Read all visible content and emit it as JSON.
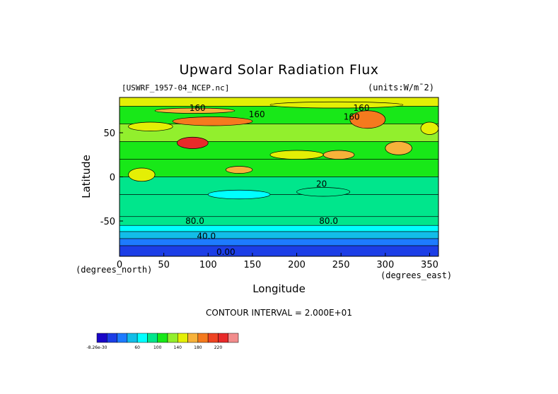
{
  "chart_data": {
    "type": "heatmap",
    "title": "Upward Solar Radiation Flux",
    "file": "[USWRF_1957-04_NCEP.nc]",
    "units": "(units:W/m¯2)",
    "xlabel": "Longitude",
    "ylabel": "Latitude",
    "x_unit": "(degrees_north)",
    "x_unit_east": "(degrees_east)",
    "xlim": [
      0,
      360
    ],
    "ylim": [
      -90,
      90
    ],
    "x_ticks": [
      0,
      50,
      100,
      150,
      200,
      250,
      300,
      350
    ],
    "y_ticks": [
      50,
      0,
      -50
    ],
    "contour_interval": "CONTOUR INTERVAL = 2.000E+01",
    "colorbar_labels": [
      "-8.26e-30",
      "60",
      "100",
      "140",
      "180",
      "220"
    ],
    "colorbar_colors": [
      "#1a06c7",
      "#1c3ee6",
      "#1d7bff",
      "#12bde8",
      "#00ffff",
      "#00e68c",
      "#18e818",
      "#92ef2d",
      "#e4ef05",
      "#f7b23a",
      "#f57a1e",
      "#ef4423",
      "#e82a2a",
      "#f28c8c"
    ],
    "contour_labels": [
      {
        "text": "160",
        "lon": 88,
        "lat": 78
      },
      {
        "text": "160",
        "lon": 155,
        "lat": 71
      },
      {
        "text": "160",
        "lon": 273,
        "lat": 78
      },
      {
        "text": "160",
        "lon": 262,
        "lat": 68
      },
      {
        "text": "20",
        "lon": 228,
        "lat": -8
      },
      {
        "text": "80.0",
        "lon": 85,
        "lat": -50
      },
      {
        "text": "80.0",
        "lon": 236,
        "lat": -50
      },
      {
        "text": "40.0",
        "lon": 98,
        "lat": -67
      },
      {
        "text": "0.00",
        "lon": 120,
        "lat": -85
      }
    ],
    "lat_bands": [
      {
        "from": 90,
        "to": 80,
        "value": 150
      },
      {
        "from": 80,
        "to": 60,
        "value": 110
      },
      {
        "from": 60,
        "to": 40,
        "value": 120
      },
      {
        "from": 40,
        "to": 20,
        "value": 110
      },
      {
        "from": 20,
        "to": 0,
        "value": 105
      },
      {
        "from": 0,
        "to": -20,
        "value": 95
      },
      {
        "from": -20,
        "to": -45,
        "value": 90
      },
      {
        "from": -45,
        "to": -55,
        "value": 80
      },
      {
        "from": -55,
        "to": -62,
        "value": 60
      },
      {
        "from": -62,
        "to": -70,
        "value": 40
      },
      {
        "from": -70,
        "to": -78,
        "value": 20
      },
      {
        "from": -78,
        "to": -90,
        "value": 5
      }
    ],
    "highlights": [
      {
        "lon": [
          60,
          150
        ],
        "lat": [
          68,
          58
        ],
        "value": 180
      },
      {
        "lon": [
          260,
          300
        ],
        "lat": [
          75,
          55
        ],
        "value": 180
      },
      {
        "lon": [
          65,
          100
        ],
        "lat": [
          45,
          32
        ],
        "value": 220
      },
      {
        "lon": [
          40,
          130
        ],
        "lat": [
          78,
          72
        ],
        "value": 160
      },
      {
        "lon": [
          170,
          320
        ],
        "lat": [
          85,
          78
        ],
        "value": 150
      },
      {
        "lon": [
          120,
          150
        ],
        "lat": [
          12,
          4
        ],
        "value": 170
      },
      {
        "lon": [
          230,
          265
        ],
        "lat": [
          30,
          20
        ],
        "value": 170
      },
      {
        "lon": [
          300,
          330
        ],
        "lat": [
          40,
          25
        ],
        "value": 160
      },
      {
        "lon": [
          10,
          40
        ],
        "lat": [
          10,
          -5
        ],
        "value": 150
      },
      {
        "lon": [
          340,
          360
        ],
        "lat": [
          62,
          48
        ],
        "value": 150
      },
      {
        "lon": [
          100,
          170
        ],
        "lat": [
          -15,
          -25
        ],
        "value": 70
      },
      {
        "lon": [
          200,
          260
        ],
        "lat": [
          -12,
          -22
        ],
        "value": 80
      },
      {
        "lon": [
          170,
          230
        ],
        "lat": [
          30,
          20
        ],
        "value": 140
      },
      {
        "lon": [
          10,
          60
        ],
        "lat": [
          62,
          52
        ],
        "value": 140
      }
    ]
  }
}
